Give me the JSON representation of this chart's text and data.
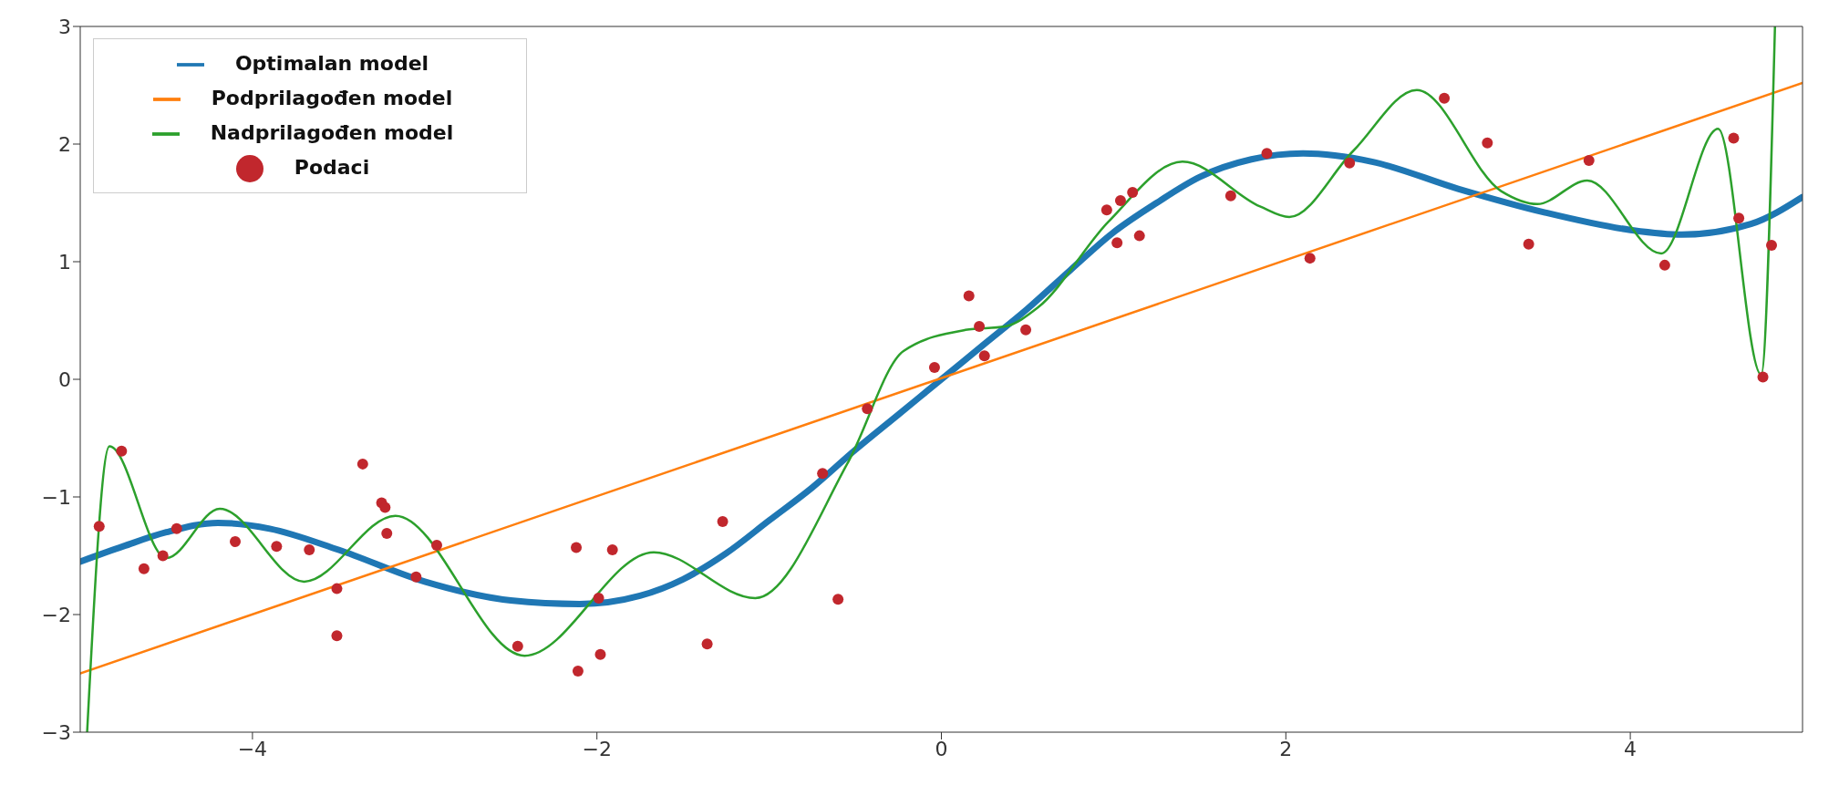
{
  "chart_data": {
    "type": "line",
    "xlim": [
      -5,
      5
    ],
    "ylim": [
      -3,
      3
    ],
    "xticks": [
      -4,
      -2,
      0,
      2,
      4
    ],
    "yticks": [
      -3,
      -2,
      -1,
      0,
      1,
      2,
      3
    ],
    "grid": false,
    "legend": "top left",
    "series": [
      {
        "name": "Optimalan model",
        "type": "line",
        "color": "#1f77b4",
        "marker": "none",
        "x": [
          -5,
          -4.75,
          -4.5,
          -4.2,
          -3.9,
          -3.5,
          -3,
          -2.5,
          -2.1,
          -1.75,
          -1.5,
          -1.25,
          -1,
          -0.75,
          -0.5,
          -0.25,
          0,
          0.25,
          0.5,
          0.75,
          1,
          1.25,
          1.5,
          1.8,
          2.1,
          2.5,
          3,
          3.5,
          4,
          4.3,
          4.7,
          5
        ],
        "values": [
          -1.55,
          -1.42,
          -1.3,
          -1.22,
          -1.27,
          -1.45,
          -1.72,
          -1.88,
          -1.91,
          -1.84,
          -1.7,
          -1.48,
          -1.2,
          -0.92,
          -0.6,
          -0.3,
          0,
          0.3,
          0.6,
          0.93,
          1.25,
          1.5,
          1.72,
          1.87,
          1.92,
          1.85,
          1.62,
          1.42,
          1.27,
          1.23,
          1.32,
          1.55
        ]
      },
      {
        "name": "Podprilagođen model",
        "type": "line",
        "color": "#ff7f0e",
        "marker": "none",
        "x": [
          -5,
          5
        ],
        "values": [
          -2.5,
          2.52
        ]
      },
      {
        "name": "Nadprilagođen model",
        "type": "line",
        "color": "#2ca02c",
        "marker": "none",
        "x": [
          -4.96,
          -4.83,
          -4.5,
          -4.19,
          -3.7,
          -3.17,
          -2.42,
          -1.67,
          -1.08,
          -0.54,
          -0.22,
          0.14,
          0.37,
          0.56,
          0.97,
          1.4,
          1.85,
          2.02,
          2.39,
          2.76,
          3.25,
          3.46,
          3.75,
          4.18,
          4.51,
          4.76,
          4.84
        ],
        "values": [
          -3,
          -0.57,
          -1.52,
          -1.1,
          -1.72,
          -1.16,
          -2.35,
          -1.47,
          -1.86,
          -0.7,
          0.24,
          0.42,
          0.45,
          0.61,
          1.34,
          1.85,
          1.47,
          1.38,
          1.94,
          2.46,
          1.6,
          1.49,
          1.69,
          1.07,
          2.13,
          0.04,
          3
        ]
      },
      {
        "name": "Podaci",
        "type": "scatter",
        "color": "#c1272d",
        "marker": "circle",
        "x": [
          -4.89,
          -4.76,
          -4.63,
          -4.52,
          -4.44,
          -4.1,
          -3.86,
          -3.67,
          -3.51,
          -3.51,
          -3.36,
          -3.25,
          -3.23,
          -3.22,
          -3.05,
          -2.93,
          -2.46,
          -2.12,
          -2.11,
          -1.99,
          -1.98,
          -1.91,
          -1.36,
          -1.27,
          -0.69,
          -0.6,
          -0.43,
          -0.04,
          0.16,
          0.22,
          0.25,
          0.49,
          0.96,
          1.02,
          1.04,
          1.11,
          1.15,
          1.68,
          1.89,
          2.14,
          2.37,
          2.92,
          3.17,
          3.41,
          3.76,
          4.2,
          4.6,
          4.63,
          4.77,
          4.82
        ],
        "values": [
          -1.25,
          -0.61,
          -1.61,
          -1.5,
          -1.27,
          -1.38,
          -1.42,
          -1.45,
          -1.78,
          -2.18,
          -0.72,
          -1.05,
          -1.09,
          -1.31,
          -1.68,
          -1.41,
          -2.27,
          -1.43,
          -2.48,
          -1.86,
          -2.34,
          -1.45,
          -2.25,
          -1.21,
          -0.8,
          -1.87,
          -0.25,
          0.1,
          0.71,
          0.45,
          0.2,
          0.42,
          1.44,
          1.16,
          1.52,
          1.59,
          1.22,
          1.56,
          1.92,
          1.03,
          1.84,
          2.39,
          2.01,
          1.15,
          1.86,
          0.97,
          2.05,
          1.37,
          0.02,
          1.14
        ]
      }
    ]
  }
}
